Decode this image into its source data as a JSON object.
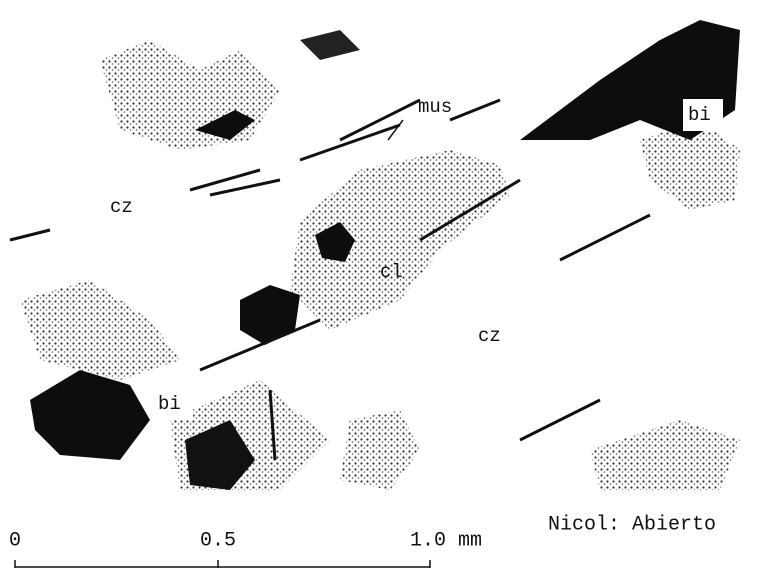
{
  "figure": {
    "labels": [
      "mus",
      "bi",
      "cz",
      "cl",
      "cz",
      "bi"
    ],
    "scale_bar": {
      "ticks": [
        "0",
        "0.5",
        "1.0 mm"
      ]
    },
    "illumination": "Nicol: Abierto"
  }
}
